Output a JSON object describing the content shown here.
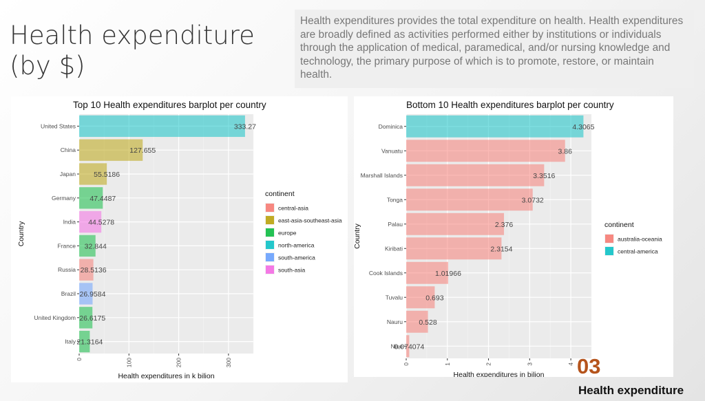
{
  "slide": {
    "title": "Health expenditure\n(by $)",
    "description": "Health expenditures provides the total expenditure on health. Health expenditures are broadly defined as activities performed either by institutions or individuals through the application of medical, paramedical, and/or nursing knowledge and technology, the primary purpose of which is to promote, restore, or maintain health.",
    "section_number": "03",
    "section_title": "Health expenditure"
  },
  "chart_data": [
    {
      "type": "bar",
      "orientation": "horizontal",
      "title": "Top 10 Health expenditures barplot per country",
      "xlabel": "Health expenditures in k bilion",
      "ylabel": "Country",
      "xlim": [
        0,
        350
      ],
      "x_ticks": [
        0,
        100,
        200,
        300
      ],
      "grid": true,
      "legend_title": "continent",
      "legend_position": "right",
      "legend": [
        {
          "name": "central-asia",
          "color": "#F8766D"
        },
        {
          "name": "east-asia-southeast-asia",
          "color": "#B79F00"
        },
        {
          "name": "europe",
          "color": "#00BA38"
        },
        {
          "name": "north-america",
          "color": "#00BFC4"
        },
        {
          "name": "south-america",
          "color": "#619CFF"
        },
        {
          "name": "south-asia",
          "color": "#F564E3"
        }
      ],
      "categories": [
        "United States",
        "China",
        "Japan",
        "Germany",
        "India",
        "France",
        "Russia",
        "Brazil",
        "United Kingdom",
        "Italy"
      ],
      "values": [
        333.27,
        127.655,
        55.5186,
        47.4487,
        44.5278,
        32.844,
        28.5136,
        26.9584,
        26.6175,
        21.3164
      ],
      "value_labels": [
        "333.27",
        "127.655",
        "55.5186",
        "47.4487",
        "44.5278",
        "32.844",
        "28.5136",
        "26.9584",
        "26.6175",
        "21.3164"
      ],
      "groups": [
        "north-america",
        "east-asia-southeast-asia",
        "east-asia-southeast-asia",
        "europe",
        "south-asia",
        "europe",
        "central-asia",
        "south-america",
        "europe",
        "europe"
      ]
    },
    {
      "type": "bar",
      "orientation": "horizontal",
      "title": "Bottom 10 Health expenditures barplot per country",
      "xlabel": "Health expenditures in bilion",
      "ylabel": "Country",
      "xlim": [
        0,
        4.5
      ],
      "x_ticks": [
        0,
        1,
        2,
        3,
        4
      ],
      "grid": true,
      "legend_title": "continent",
      "legend_position": "right",
      "legend": [
        {
          "name": "australia-oceania",
          "color": "#F8766D"
        },
        {
          "name": "central-america",
          "color": "#00BFC4"
        }
      ],
      "categories": [
        "Dominica",
        "Vanuatu",
        "Marshall Islands",
        "Tonga",
        "Palau",
        "Kiribati",
        "Cook Islands",
        "Tuvalu",
        "Nauru",
        "Niue"
      ],
      "values": [
        4.3065,
        3.86,
        3.3516,
        3.0732,
        2.376,
        2.3154,
        1.01966,
        0.693,
        0.528,
        0.074074
      ],
      "value_labels": [
        "4.3065",
        "3.86",
        "3.3516",
        "3.0732",
        "2.376",
        "2.3154",
        "1.01966",
        "0.693",
        "0.528",
        "0.074074"
      ],
      "groups": [
        "central-america",
        "australia-oceania",
        "australia-oceania",
        "australia-oceania",
        "australia-oceania",
        "australia-oceania",
        "australia-oceania",
        "australia-oceania",
        "australia-oceania",
        "australia-oceania"
      ]
    }
  ]
}
